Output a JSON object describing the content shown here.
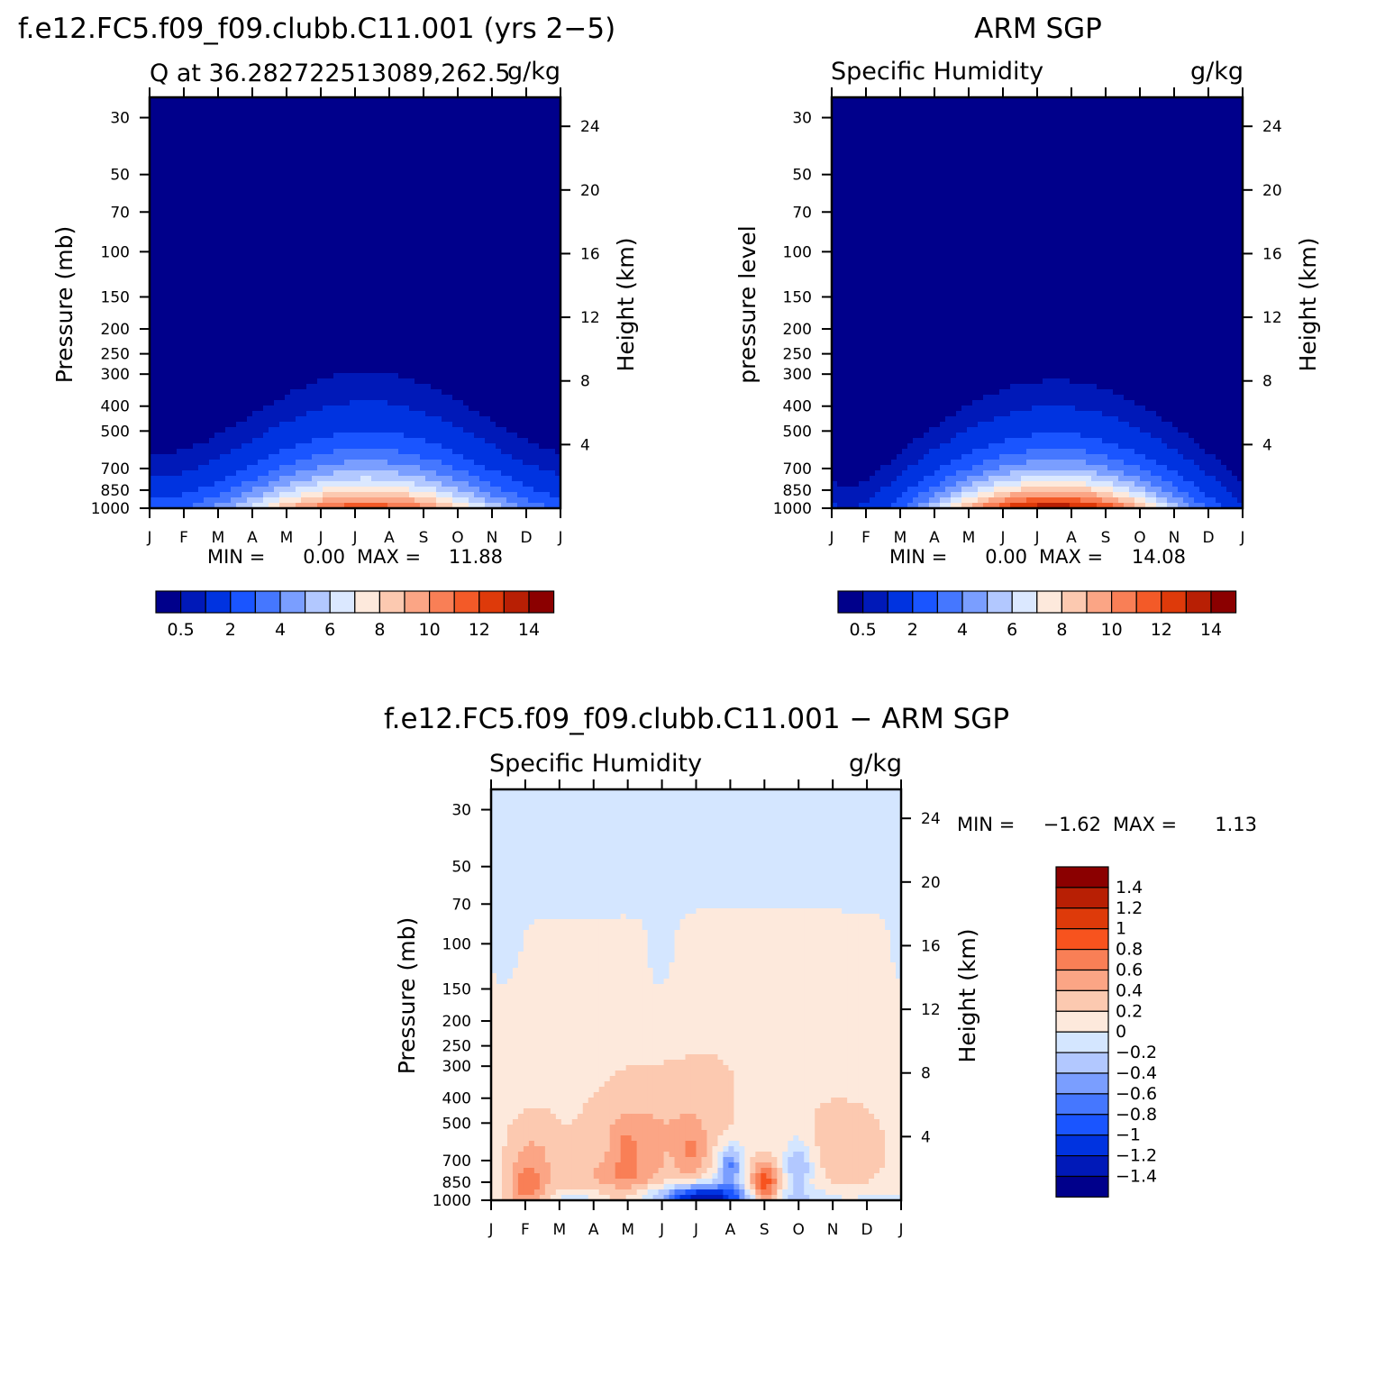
{
  "chart_data": [
    {
      "type": "heatmap",
      "panel": "model",
      "title": "f.e12.FC5.f09_f09.clubb.C11.001 (yrs 2−5)",
      "subtitle_left": "Q at 36.282722513089,262.5",
      "units": "g/kg",
      "ylabel": "Pressure (mb)",
      "ylabel_right": "Height (km)",
      "x_ticks": [
        "J",
        "F",
        "M",
        "A",
        "M",
        "J",
        "J",
        "A",
        "S",
        "O",
        "N",
        "D",
        "J"
      ],
      "y_ticks": [
        30,
        50,
        70,
        100,
        150,
        200,
        250,
        300,
        400,
        500,
        700,
        850,
        1000
      ],
      "y_right_ticks": [
        24,
        20,
        16,
        12,
        8,
        4
      ],
      "ylim": [
        1000,
        25
      ],
      "min_label": "MIN =",
      "min_value": "0.00",
      "max_label": "MAX =",
      "max_value": "11.88",
      "stats_text": "MIN =     0.00  MAX =    11.88",
      "colorbar_labels": [
        "0.5",
        "2",
        "4",
        "6",
        "8",
        "10",
        "12",
        "14"
      ]
    },
    {
      "type": "heatmap",
      "panel": "obs",
      "title": "ARM SGP",
      "subtitle_left": "Specific Humidity",
      "units": "g/kg",
      "ylabel": "pressure level",
      "ylabel_right": "Height (km)",
      "x_ticks": [
        "J",
        "F",
        "M",
        "A",
        "M",
        "J",
        "J",
        "A",
        "S",
        "O",
        "N",
        "D",
        "J"
      ],
      "y_ticks": [
        30,
        50,
        70,
        100,
        150,
        200,
        250,
        300,
        400,
        500,
        700,
        850,
        1000
      ],
      "y_right_ticks": [
        24,
        20,
        16,
        12,
        8,
        4
      ],
      "ylim": [
        1000,
        25
      ],
      "min_label": "MIN =",
      "min_value": "0.00",
      "max_label": "MAX =",
      "max_value": "14.08",
      "stats_text": "MIN =     0.00  MAX =    14.08",
      "colorbar_labels": [
        "0.5",
        "2",
        "4",
        "6",
        "8",
        "10",
        "12",
        "14"
      ]
    },
    {
      "type": "heatmap",
      "panel": "diff",
      "title": "f.e12.FC5.f09_f09.clubb.C11.001 − ARM SGP",
      "subtitle_left": "Specific Humidity",
      "units": "g/kg",
      "ylabel": "Pressure (mb)",
      "ylabel_right": "Height (km)",
      "x_ticks": [
        "J",
        "F",
        "M",
        "A",
        "M",
        "J",
        "J",
        "A",
        "S",
        "O",
        "N",
        "D",
        "J"
      ],
      "y_ticks": [
        30,
        50,
        70,
        100,
        150,
        200,
        250,
        300,
        400,
        500,
        700,
        850,
        1000
      ],
      "y_right_ticks": [
        24,
        20,
        16,
        12,
        8,
        4
      ],
      "ylim": [
        1000,
        25
      ],
      "min_label": "MIN =",
      "min_value": "−1.62",
      "max_label": "MAX =",
      "max_value": "1.13",
      "stats_text": "MIN =   −1.62  MAX =    1.13",
      "colorbar_labels": [
        "1.4",
        "1.2",
        "1",
        "0.8",
        "0.6",
        "0.4",
        "0.2",
        "0",
        "−0.2",
        "−0.4",
        "−0.6",
        "−0.8",
        "−1",
        "−1.2",
        "−1.4"
      ]
    }
  ],
  "colors": {
    "sequential": [
      "#00008b",
      "#0019b8",
      "#0033e0",
      "#1a55ff",
      "#4577ff",
      "#7a9eff",
      "#b2c8ff",
      "#dbe8ff",
      "#fde9dc",
      "#fcc9b0",
      "#fba585",
      "#f97f56",
      "#f35a28",
      "#de3a0a",
      "#b81f04",
      "#8b0000"
    ],
    "diverging": [
      "#8b0000",
      "#b81f04",
      "#de3a0a",
      "#f7531e",
      "#f97f56",
      "#fba585",
      "#fcc9b0",
      "#fde9dc",
      "#d4e6ff",
      "#b2c8ff",
      "#7a9eff",
      "#4577ff",
      "#1a55ff",
      "#0033e0",
      "#0019b8",
      "#00008b"
    ]
  }
}
